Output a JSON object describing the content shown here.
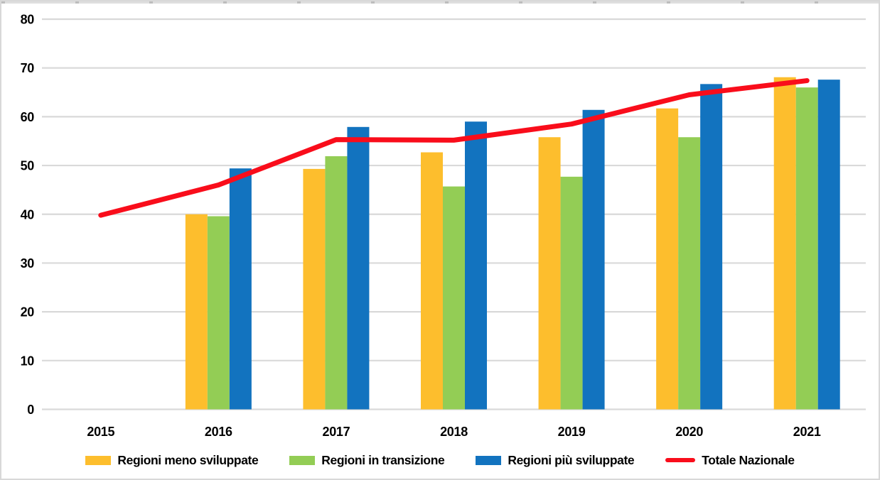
{
  "chart_data": {
    "type": "bar",
    "subtype": "grouped-columns-with-line-overlay",
    "title": "",
    "xlabel": "",
    "ylabel": "",
    "categories": [
      "2015",
      "2016",
      "2017",
      "2018",
      "2019",
      "2020",
      "2021"
    ],
    "series": [
      {
        "name": "Regioni meno sviluppate",
        "kind": "bar",
        "color": "#FDBE2D",
        "values": [
          null,
          40.0,
          49.3,
          52.7,
          55.8,
          61.7,
          68.1
        ]
      },
      {
        "name": "Regioni in transizione",
        "kind": "bar",
        "color": "#93CD55",
        "values": [
          null,
          39.6,
          51.9,
          45.7,
          47.7,
          55.8,
          66.0
        ]
      },
      {
        "name": "Regioni più sviluppate",
        "kind": "bar",
        "color": "#1273BF",
        "values": [
          null,
          49.4,
          57.9,
          59.0,
          61.4,
          66.7,
          67.6
        ]
      },
      {
        "name": "Totale Nazionale",
        "kind": "line",
        "color": "#F90D1B",
        "values": [
          39.8,
          46.0,
          55.3,
          55.2,
          58.5,
          64.5,
          67.4
        ]
      }
    ],
    "ylim": [
      0,
      80
    ],
    "yticks": [
      0,
      10,
      20,
      30,
      40,
      50,
      60,
      70,
      80
    ],
    "grid": true,
    "gridline_color": "#D9D9D9",
    "legend_position": "bottom"
  }
}
